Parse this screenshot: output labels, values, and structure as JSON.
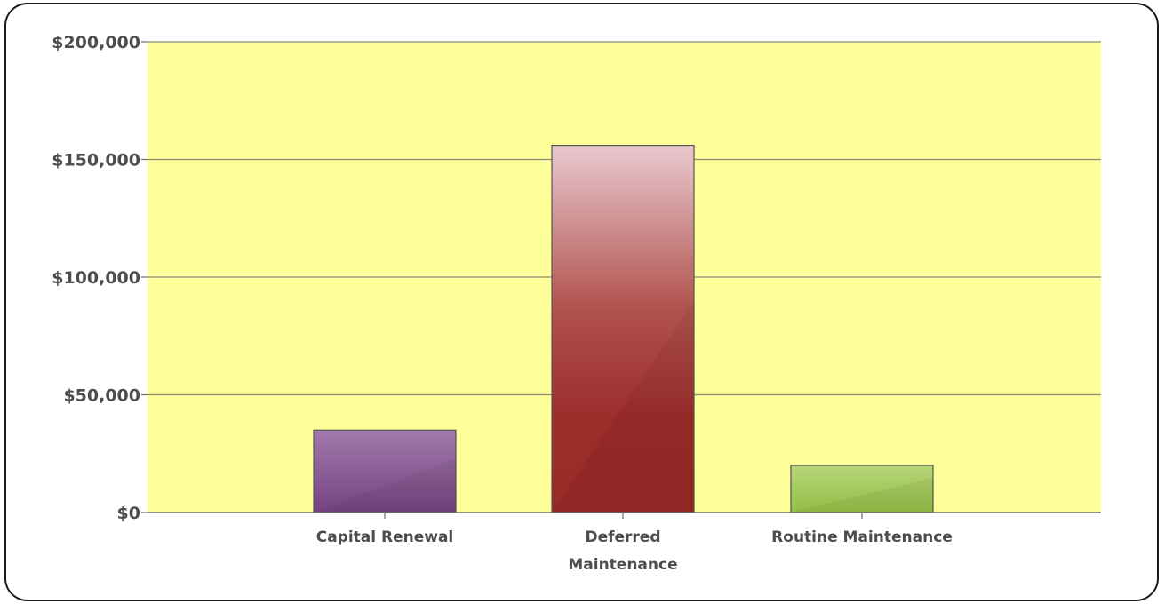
{
  "chart_data": {
    "type": "bar",
    "title": "",
    "xlabel": "",
    "ylabel": "",
    "categories": [
      "Capital Renewal",
      "Deferred Maintenance",
      "Routine Maintenance"
    ],
    "category_label_lines": [
      [
        "Capital Renewal"
      ],
      [
        "Deferred",
        "Maintenance"
      ],
      [
        "Routine Maintenance"
      ]
    ],
    "values": [
      35000,
      156000,
      20000
    ],
    "colors": [
      "#7b4a86",
      "#9b2c2a",
      "#9cc24f"
    ],
    "ylim": [
      0,
      200000
    ],
    "yticks": [
      0,
      50000,
      100000,
      150000,
      200000
    ],
    "ytick_labels": [
      "$0",
      "$50,000",
      "$100,000",
      "$150,000",
      "$200,000"
    ],
    "plot_background": "#ffff99",
    "grid": true,
    "legend": false
  }
}
